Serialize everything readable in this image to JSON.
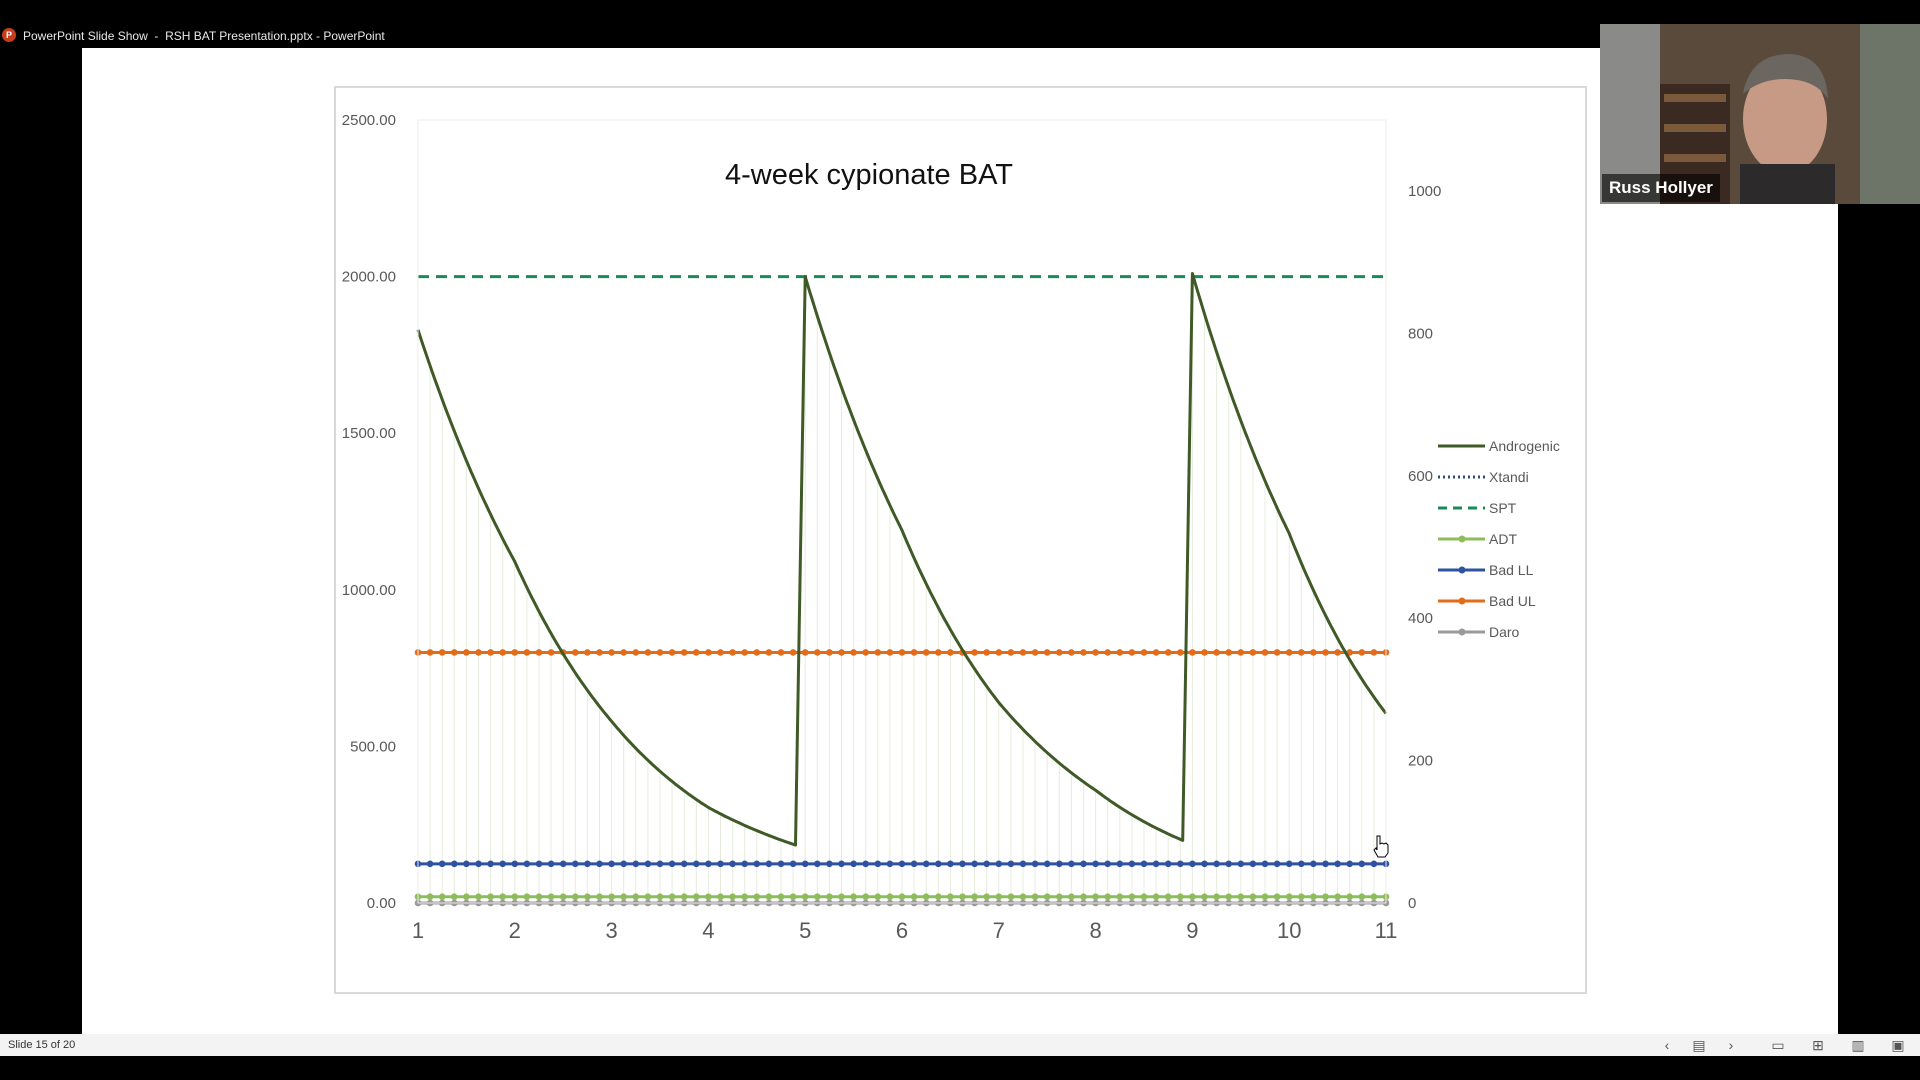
{
  "window": {
    "title": "PowerPoint Slide Show  -  RSH BAT Presentation.pptx - PowerPoint",
    "app_icon": "powerpoint-icon"
  },
  "video": {
    "participant_name": "Russ Hollyer"
  },
  "statusbar": {
    "slide_counter": "Slide 15 of 20",
    "icons": [
      "previous-slide-icon",
      "slide-menu-icon",
      "next-slide-icon",
      "normal-view-icon",
      "slide-sorter-icon",
      "reading-view-icon",
      "slideshow-icon"
    ]
  },
  "chart_data": {
    "type": "line",
    "title": "4-week cypionate BAT",
    "x_ticks": [
      "1",
      "2",
      "3",
      "4",
      "5",
      "6",
      "7",
      "8",
      "9",
      "10",
      "11"
    ],
    "xlim": [
      1,
      11
    ],
    "y_left": {
      "ylim": [
        0,
        2500
      ],
      "ticks": [
        "0.00",
        "500.00",
        "1000.00",
        "1500.00",
        "2000.00",
        "2500.00"
      ]
    },
    "y_right": {
      "ylim": [
        0,
        1000
      ],
      "ticks": [
        "0",
        "200",
        "400",
        "600",
        "800",
        "1000"
      ]
    },
    "grid": false,
    "legend_position": "right",
    "series": [
      {
        "name": "Androgenic",
        "color": "#3f5a26",
        "style": "solid",
        "marker": "none",
        "axis": "left",
        "segments": [
          {
            "x": [
              1,
              2,
              3,
              4,
              4.9
            ],
            "y": [
              1830,
              1090,
              580,
              305,
              185
            ]
          },
          {
            "x": [
              4.9,
              5
            ],
            "y": [
              185,
              2000
            ]
          },
          {
            "x": [
              5,
              6,
              7,
              8,
              8.9
            ],
            "y": [
              2000,
              1190,
              640,
              360,
              200
            ]
          },
          {
            "x": [
              8.9,
              9
            ],
            "y": [
              200,
              2010
            ]
          },
          {
            "x": [
              9,
              10,
              11
            ],
            "y": [
              2010,
              1180,
              605
            ]
          }
        ]
      },
      {
        "name": "Xtandi",
        "color": "#2f4b7c",
        "style": "dotted",
        "marker": "none",
        "axis": "left",
        "y_const": 0
      },
      {
        "name": "SPT",
        "color": "#1a8a5a",
        "style": "dashed",
        "marker": "none",
        "axis": "left",
        "y_const": 2000
      },
      {
        "name": "ADT",
        "color": "#8fbc5a",
        "style": "solid",
        "marker": "circle",
        "axis": "left",
        "y_const": 20
      },
      {
        "name": "Bad LL",
        "color": "#2e52a0",
        "style": "solid",
        "marker": "circle",
        "axis": "left",
        "y_const": 125
      },
      {
        "name": "Bad UL",
        "color": "#e36c1a",
        "style": "solid",
        "marker": "circle",
        "axis": "left",
        "y_const": 800
      },
      {
        "name": "Daro",
        "color": "#9a9a9a",
        "style": "solid",
        "marker": "circle",
        "axis": "left",
        "y_const": 0
      }
    ]
  }
}
